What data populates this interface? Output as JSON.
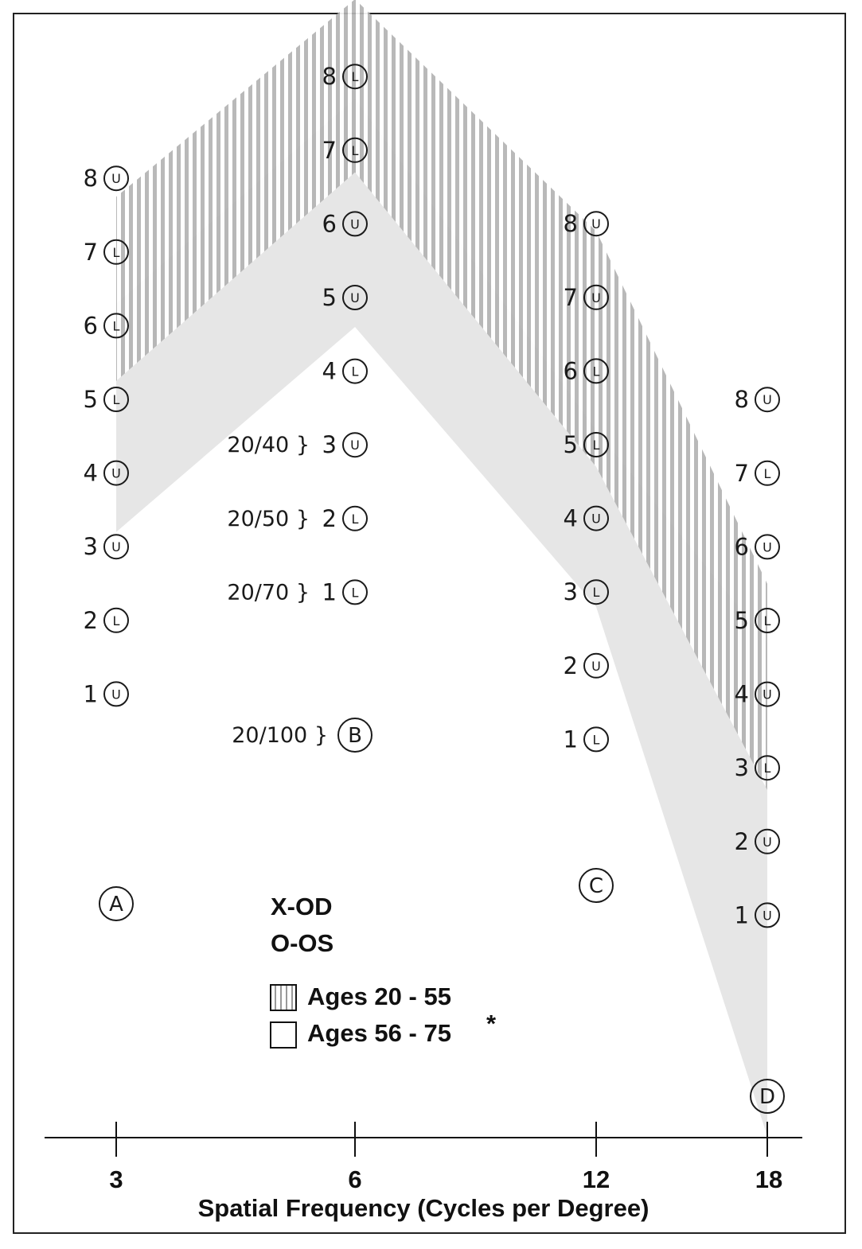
{
  "chart_data": {
    "type": "area",
    "xlabel": "Spatial Frequency (Cycles per Degree)",
    "x_ticks": [
      "3",
      "6",
      "12",
      "18"
    ],
    "columns": [
      {
        "x": "3",
        "column_label": "A",
        "patches": [
          {
            "level": "1",
            "orient": "U"
          },
          {
            "level": "2",
            "orient": "L"
          },
          {
            "level": "3",
            "orient": "U"
          },
          {
            "level": "4",
            "orient": "U"
          },
          {
            "level": "5",
            "orient": "L"
          },
          {
            "level": "6",
            "orient": "L"
          },
          {
            "level": "7",
            "orient": "L"
          },
          {
            "level": "8",
            "orient": "U"
          }
        ]
      },
      {
        "x": "6",
        "column_label": "B",
        "patches": [
          {
            "level": "1",
            "orient": "L"
          },
          {
            "level": "2",
            "orient": "L"
          },
          {
            "level": "3",
            "orient": "U"
          },
          {
            "level": "4",
            "orient": "L"
          },
          {
            "level": "5",
            "orient": "U"
          },
          {
            "level": "6",
            "orient": "U"
          },
          {
            "level": "7",
            "orient": "L"
          },
          {
            "level": "8",
            "orient": "L"
          }
        ],
        "acuity_labels": [
          {
            "text": "20/40 }",
            "level": 3
          },
          {
            "text": "20/50 }",
            "level": 2
          },
          {
            "text": "20/70 }",
            "level": 1
          },
          {
            "text": "20/100 }",
            "level": -1
          }
        ]
      },
      {
        "x": "12",
        "column_label": "C",
        "patches": [
          {
            "level": "1",
            "orient": "L"
          },
          {
            "level": "2",
            "orient": "U"
          },
          {
            "level": "3",
            "orient": "L"
          },
          {
            "level": "4",
            "orient": "U"
          },
          {
            "level": "5",
            "orient": "L"
          },
          {
            "level": "6",
            "orient": "L"
          },
          {
            "level": "7",
            "orient": "U"
          },
          {
            "level": "8",
            "orient": "U"
          }
        ]
      },
      {
        "x": "18",
        "column_label": "D",
        "patches": [
          {
            "level": "1",
            "orient": "U"
          },
          {
            "level": "2",
            "orient": "U"
          },
          {
            "level": "3",
            "orient": "L"
          },
          {
            "level": "4",
            "orient": "U"
          },
          {
            "level": "5",
            "orient": "L"
          },
          {
            "level": "6",
            "orient": "U"
          },
          {
            "level": "7",
            "orient": "L"
          },
          {
            "level": "8",
            "orient": "U"
          }
        ]
      }
    ],
    "series": [
      {
        "name": "Ages 20 - 55",
        "fill": "hatched",
        "upper": [
          7.75,
          9.05,
          7.9,
          5.5
        ],
        "lower": [
          5.25,
          6.7,
          4.7,
          2.7
        ]
      },
      {
        "name": "Ages 56 - 75",
        "fill": "solid",
        "upper": [
          6.3,
          7.7,
          5.2,
          4.7
        ],
        "lower": [
          3.2,
          4.6,
          2.8,
          -2.0
        ]
      }
    ],
    "legend": {
      "placement": "bottom-center",
      "markers": [
        "X-OD",
        "O-OS"
      ],
      "entries": [
        "Ages 20 - 55",
        "Ages 56 - 75"
      ],
      "asterisk": "*"
    },
    "colors": {
      "band": "#e6e6e6",
      "hatch": "#b3b3b3",
      "ink": "#1a1a1a"
    }
  }
}
